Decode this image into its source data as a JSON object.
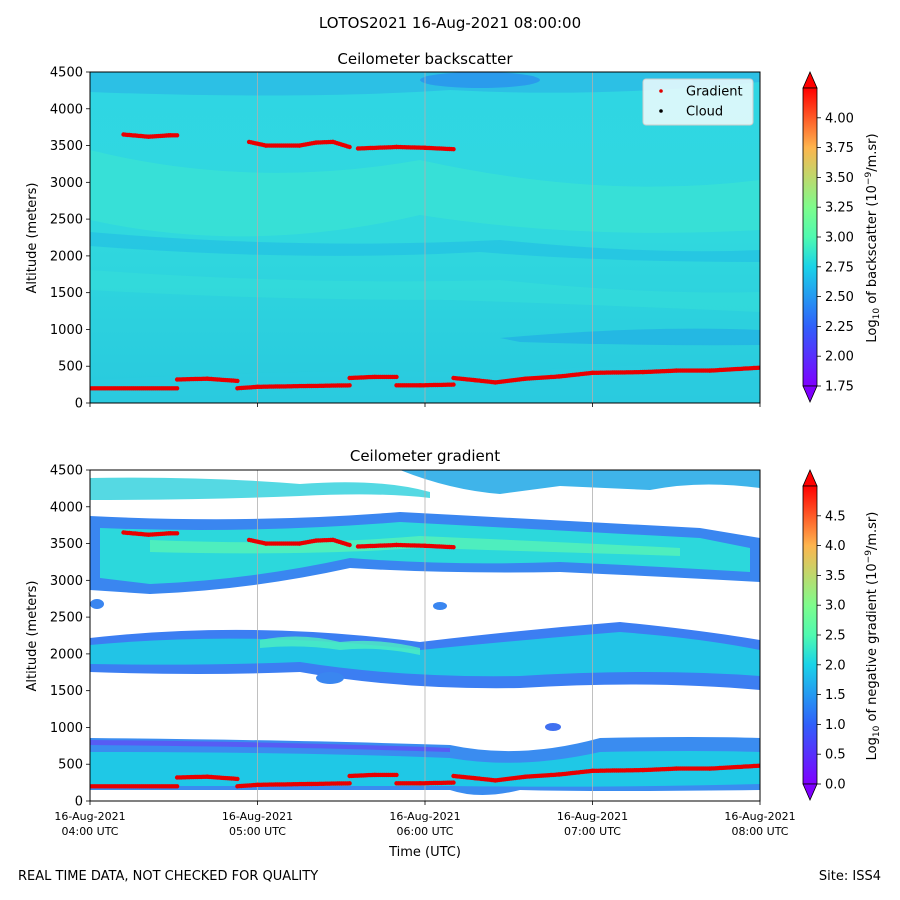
{
  "suptitle": "LOTOS2021 16-Aug-2021 08:00:00",
  "footer": {
    "left": "REAL TIME DATA, NOT CHECKED FOR QUALITY",
    "right": "Site: ISS4"
  },
  "chart_data": [
    {
      "type": "heatmap",
      "title": "Ceilometer backscatter",
      "ylabel": "Altitude (meters)",
      "ylim": [
        0,
        4500
      ],
      "yticks": [
        "0",
        "500",
        "1000",
        "1500",
        "2000",
        "2500",
        "3000",
        "3500",
        "4000",
        "4500"
      ],
      "xlim_hours": [
        4,
        8
      ],
      "colorbar": {
        "label": "Log10 of backscatter (10^-9/m.sr)",
        "range": [
          1.75,
          4.25
        ],
        "ticks": [
          "1.75",
          "2.00",
          "2.25",
          "2.50",
          "2.75",
          "3.00",
          "3.25",
          "3.50",
          "3.75",
          "4.00"
        ]
      },
      "legend": {
        "position": "top-right",
        "entries": [
          "Gradient",
          "Cloud"
        ]
      },
      "gradient_points": [
        [
          4.0,
          200
        ],
        [
          4.52,
          200
        ],
        [
          4.52,
          320
        ],
        [
          4.7,
          330
        ],
        [
          4.88,
          300
        ],
        [
          4.88,
          200
        ],
        [
          5.0,
          220
        ],
        [
          5.55,
          240
        ],
        [
          5.55,
          340
        ],
        [
          5.7,
          355
        ],
        [
          5.83,
          355
        ],
        [
          5.83,
          240
        ],
        [
          5.97,
          240
        ],
        [
          6.17,
          250
        ],
        [
          6.17,
          340
        ],
        [
          6.3,
          310
        ],
        [
          6.42,
          280
        ],
        [
          6.6,
          330
        ],
        [
          6.8,
          360
        ],
        [
          7.0,
          410
        ],
        [
          7.3,
          420
        ],
        [
          7.5,
          440
        ],
        [
          7.7,
          440
        ],
        [
          8.0,
          480
        ]
      ],
      "gradient_upper": [
        [
          4.2,
          3650
        ],
        [
          4.35,
          3620
        ],
        [
          4.48,
          3640
        ],
        [
          4.52,
          3640
        ],
        [
          4.95,
          3550
        ],
        [
          5.05,
          3500
        ],
        [
          5.25,
          3500
        ],
        [
          5.35,
          3540
        ],
        [
          5.45,
          3550
        ],
        [
          5.55,
          3480
        ],
        [
          5.6,
          3460
        ],
        [
          5.83,
          3480
        ],
        [
          6.0,
          3470
        ],
        [
          6.17,
          3450
        ]
      ]
    },
    {
      "type": "heatmap",
      "title": "Ceilometer gradient",
      "ylabel": "Altitude (meters)",
      "xlabel": "Time (UTC)",
      "ylim": [
        0,
        4500
      ],
      "yticks": [
        "0",
        "500",
        "1000",
        "1500",
        "2000",
        "2500",
        "3000",
        "3500",
        "4000",
        "4500"
      ],
      "xticks": [
        {
          "date": "16-Aug-2021",
          "time": "04:00 UTC"
        },
        {
          "date": "16-Aug-2021",
          "time": "05:00 UTC"
        },
        {
          "date": "16-Aug-2021",
          "time": "06:00 UTC"
        },
        {
          "date": "16-Aug-2021",
          "time": "07:00 UTC"
        },
        {
          "date": "16-Aug-2021",
          "time": "08:00 UTC"
        }
      ],
      "colorbar": {
        "label": "Log10 of negative gradient (10^-9/m.sr)",
        "range": [
          0.0,
          5.0
        ],
        "ticks": [
          "0.0",
          "0.5",
          "1.0",
          "1.5",
          "2.0",
          "2.5",
          "3.0",
          "3.5",
          "4.0",
          "4.5"
        ]
      },
      "signal_layers_m": [
        [
          50,
          850
        ],
        [
          1550,
          2450
        ],
        [
          2800,
          3950
        ],
        [
          4050,
          4500
        ]
      ],
      "gradient_points_note": "same red gradient trace as upper panel"
    }
  ]
}
